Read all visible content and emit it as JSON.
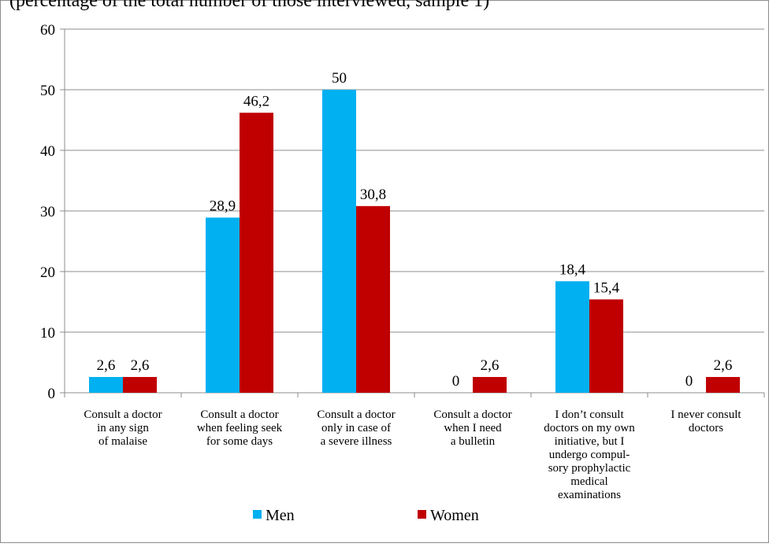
{
  "chart_data": {
    "type": "bar",
    "title": "(percentage of the total number of those interviewed, sample 1)",
    "categories": [
      [
        "Consult a doctor",
        "in any sign",
        "of malaise"
      ],
      [
        "Consult a doctor",
        "when feeling seek",
        "for some days"
      ],
      [
        "Consult a doctor",
        "only in case of",
        "a severe illness"
      ],
      [
        "Consult a doctor",
        "when I need",
        "a bulletin"
      ],
      [
        "I don’t consult",
        "doctors on my own",
        "initiative, but I",
        "undergo compul-",
        "sory prophylactic",
        "medical",
        "examinations"
      ],
      [
        "I never consult",
        "doctors"
      ]
    ],
    "series": [
      {
        "name": "Men",
        "color": "#00B0F0",
        "values": [
          2.6,
          28.9,
          50,
          0,
          18.4,
          0
        ],
        "labels": [
          "2,6",
          "28,9",
          "50",
          "0",
          "18,4",
          "0"
        ]
      },
      {
        "name": "Women",
        "color": "#C00000",
        "values": [
          2.6,
          46.2,
          30.8,
          2.6,
          15.4,
          2.6
        ],
        "labels": [
          "2,6",
          "46,2",
          "30,8",
          "2,6",
          "15,4",
          "2,6"
        ]
      }
    ],
    "ylim": [
      0,
      60
    ],
    "yticks": [
      "0",
      "10",
      "20",
      "30",
      "40",
      "50",
      "60"
    ],
    "grid": true,
    "legend_position": "bottom"
  }
}
